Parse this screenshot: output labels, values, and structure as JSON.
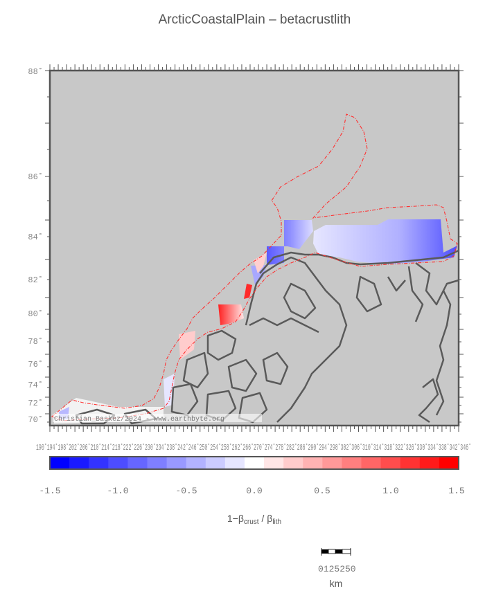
{
  "title": "ArcticCoastalPlain – betacrustlith",
  "latitude_labels": [
    "88˚",
    "86˚",
    "84˚",
    "82˚",
    "80˚",
    "78˚",
    "76˚",
    "74˚",
    "72˚",
    "70˚"
  ],
  "longitude_labels_overlapping": "190˚194˚198˚202˚206˚210˚214˚218˚222˚226˚230˚234˚238˚242˚246˚250˚254˚258˚262˚266˚270˚274˚278˚282˚286˚290˚294˚298˚302˚306˚310˚314˚318˚322˚326˚330˚334˚338˚342˚346˚",
  "credit": "Christian_Baskez/2024 - www.earthbyte.org",
  "colorbar": {
    "min": -1.5,
    "max": 1.5,
    "tick_labels": [
      "-1.5",
      "-1.0",
      "-0.5",
      "0.0",
      "0.5",
      "1.0",
      "1.5"
    ],
    "colors": [
      "#0000ff",
      "#1a1aff",
      "#3333ff",
      "#4d4dff",
      "#6666ff",
      "#7f7fff",
      "#9999ff",
      "#b3b3ff",
      "#ccccff",
      "#e6e6ff",
      "#ffffff",
      "#ffe6e6",
      "#ffcccc",
      "#ffb3b3",
      "#ff9999",
      "#ff7f7f",
      "#ff6666",
      "#ff4d4d",
      "#ff3333",
      "#ff1a1a",
      "#ff0000"
    ],
    "title_prefix": "1−β",
    "title_sub1": "crust",
    "title_mid": " / β",
    "title_sub2": "lith"
  },
  "scale_bar": {
    "labels": "0125250",
    "unit": "km"
  },
  "colors": {
    "background": "#c8c8c8",
    "coast": "#5a5a5a",
    "boundary": "#ff3030"
  }
}
